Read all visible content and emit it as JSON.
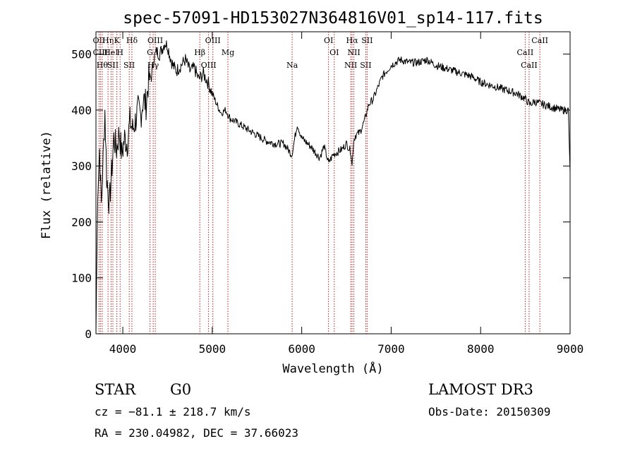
{
  "chart_data": {
    "type": "line",
    "title": "spec-57091-HD153027N364816V01_sp14-117.fits",
    "xlabel": "Wavelength (Å)",
    "ylabel": "Flux (relative)",
    "xlim": [
      3700,
      9000
    ],
    "ylim": [
      0,
      540
    ],
    "xticks": [
      4000,
      5000,
      6000,
      7000,
      8000,
      9000
    ],
    "yticks": [
      0,
      100,
      200,
      300,
      400,
      500
    ],
    "grid": false,
    "line_color": "#000000",
    "marker_color": "#b22222",
    "series": [
      {
        "x": [
          3700,
          3720,
          3740,
          3760,
          3780,
          3800,
          3820,
          3850,
          3880,
          3900,
          3930,
          3960,
          3990,
          4020,
          4050,
          4080,
          4110,
          4140,
          4170,
          4200,
          4230,
          4260,
          4290,
          4320,
          4350,
          4380,
          4410,
          4440,
          4470,
          4500,
          4530,
          4560,
          4600,
          4650,
          4700,
          4750,
          4800,
          4850,
          4900,
          4950,
          5000,
          5050,
          5100,
          5150,
          5200,
          5250,
          5300,
          5400,
          5500,
          5600,
          5700,
          5800,
          5890,
          5950,
          6000,
          6100,
          6200,
          6250,
          6300,
          6350,
          6400,
          6450,
          6500,
          6550,
          6563,
          6580,
          6600,
          6650,
          6700,
          6750,
          6800,
          6850,
          6900,
          6950,
          7000,
          7100,
          7200,
          7300,
          7400,
          7500,
          7600,
          7700,
          7800,
          7900,
          8000,
          8100,
          8200,
          8300,
          8400,
          8500,
          8550,
          8600,
          8700,
          8800,
          8900,
          8980,
          9000
        ],
        "y": [
          0,
          260,
          330,
          230,
          310,
          400,
          280,
          230,
          300,
          350,
          330,
          360,
          320,
          350,
          340,
          380,
          365,
          380,
          400,
          390,
          420,
          410,
          455,
          460,
          495,
          505,
          500,
          510,
          520,
          515,
          495,
          480,
          470,
          480,
          490,
          470,
          475,
          455,
          465,
          450,
          430,
          410,
          395,
          400,
          385,
          380,
          375,
          365,
          355,
          345,
          340,
          340,
          320,
          375,
          350,
          335,
          315,
          335,
          305,
          320,
          325,
          330,
          340,
          325,
          300,
          345,
          355,
          360,
          380,
          410,
          420,
          440,
          460,
          470,
          480,
          490,
          485,
          485,
          490,
          480,
          475,
          470,
          465,
          460,
          450,
          445,
          440,
          435,
          430,
          420,
          410,
          415,
          410,
          405,
          400,
          400,
          290
        ]
      }
    ],
    "line_markers": [
      {
        "x": 3734,
        "label": "OII"
      },
      {
        "x": 3750,
        "label": "CIII"
      },
      {
        "x": 3770,
        "label": "Hθ"
      },
      {
        "x": 3835,
        "label": "Hη"
      },
      {
        "x": 3869,
        "label": "HeI"
      },
      {
        "x": 3889,
        "label": "SII"
      },
      {
        "x": 3934,
        "label": "K"
      },
      {
        "x": 3970,
        "label": "H"
      },
      {
        "x": 4072,
        "label": "SII"
      },
      {
        "x": 4102,
        "label": "Hδ"
      },
      {
        "x": 4304,
        "label": "G"
      },
      {
        "x": 4340,
        "label": "Hγ"
      },
      {
        "x": 4363,
        "label": "OIII"
      },
      {
        "x": 4861,
        "label": "Hβ"
      },
      {
        "x": 4959,
        "label": "OIII"
      },
      {
        "x": 5007,
        "label": "OIII"
      },
      {
        "x": 5175,
        "label": "Mg"
      },
      {
        "x": 5893,
        "label": "Na"
      },
      {
        "x": 6300,
        "label": "OI"
      },
      {
        "x": 6364,
        "label": "OI"
      },
      {
        "x": 6548,
        "label": "NII"
      },
      {
        "x": 6563,
        "label": "Hα"
      },
      {
        "x": 6583,
        "label": "NII"
      },
      {
        "x": 6716,
        "label": "SII"
      },
      {
        "x": 6731,
        "label": "SII"
      },
      {
        "x": 8498,
        "label": "CaII"
      },
      {
        "x": 8542,
        "label": "CaII"
      },
      {
        "x": 8662,
        "label": "CaII"
      }
    ]
  },
  "info": {
    "classification": "STAR",
    "subclass": "G0",
    "survey": "LAMOST DR3",
    "redshift": "cz = −81.1 ± 218.7 km/s",
    "obs_date": "Obs-Date: 20150309",
    "coords": "RA = 230.04982, DEC =  37.66023"
  }
}
